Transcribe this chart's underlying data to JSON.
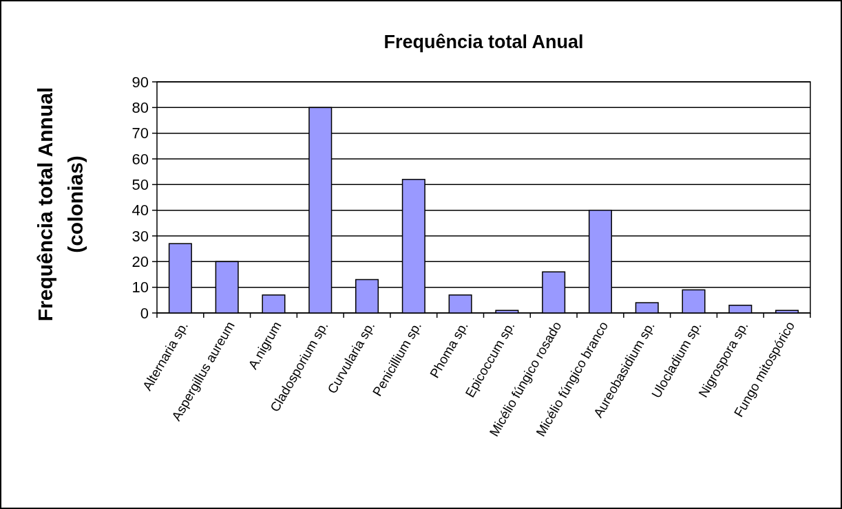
{
  "chart_data": {
    "type": "bar",
    "title": "Frequência total Anual",
    "ylabel": "Frequência total Annual\n(colonias)",
    "categories": [
      "Alternaria sp.",
      "Aspergillus aureum",
      "A.nigrum",
      "Cladosporium sp.",
      "Curvularia sp.",
      "Penicillium sp.",
      "Phoma sp.",
      "Epicoccum sp.",
      "Micélio fúngico rosado",
      "Micélio fúngico branco",
      "Aureobasidium sp.",
      "Ulocladium sp.",
      "Nigrospora sp.",
      "Fungo mitospórico"
    ],
    "values": [
      27,
      20,
      7,
      80,
      13,
      52,
      7,
      1,
      16,
      40,
      4,
      9,
      3,
      1
    ],
    "color": "#9999ff",
    "ylim": [
      0,
      90
    ],
    "yticks": [
      0,
      10,
      20,
      30,
      40,
      50,
      60,
      70,
      80,
      90
    ],
    "grid": "y"
  }
}
